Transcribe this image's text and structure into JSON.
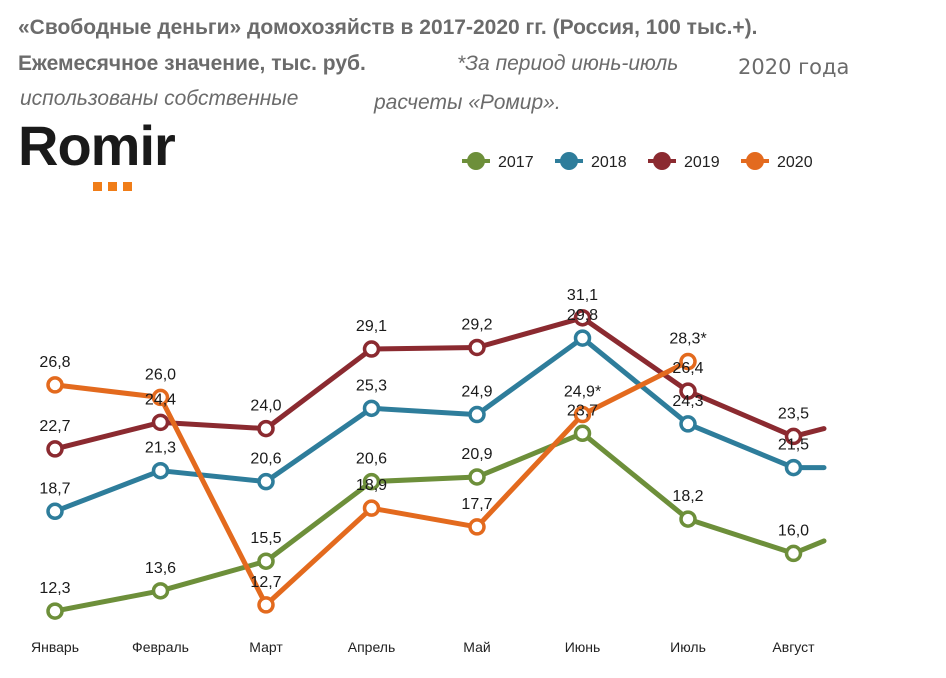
{
  "header": {
    "title_line1": "«Свободные деньги» домохозяйств в 2017-2020 гг. (Россия, 100 тыс.+).",
    "title_line2": "Ежемесячное значение, тыс. руб.",
    "note_part1": "*За период июнь-июль",
    "note_part2": "2020 года",
    "note_part3": "использованы собственные",
    "note_part4": "расчеты «Ромир»."
  },
  "logo": {
    "text": "Romir",
    "accent_color": "#f07d18"
  },
  "chart_data": {
    "type": "line",
    "categories": [
      "Январь",
      "Февраль",
      "Март",
      "Апрель",
      "Май",
      "Июнь",
      "Июль",
      "Август"
    ],
    "series": [
      {
        "name": "2017",
        "color": "#6d8f3a",
        "values": [
          12.3,
          13.6,
          15.5,
          20.6,
          20.9,
          23.7,
          18.2,
          16.0
        ],
        "labels": [
          "12,3",
          "13,6",
          "15,5",
          "20,6",
          "20,9",
          "23,7",
          "18,2",
          "16,0"
        ],
        "trailing_value": 16.8
      },
      {
        "name": "2018",
        "color": "#2e7d9b",
        "values": [
          18.7,
          21.3,
          20.6,
          25.3,
          24.9,
          29.8,
          24.3,
          21.5
        ],
        "labels": [
          "18,7",
          "21,3",
          "20,6",
          "25,3",
          "24,9",
          "29,8",
          "24,3",
          "21,5"
        ],
        "trailing_value": 21.5
      },
      {
        "name": "2019",
        "color": "#8b2a30",
        "values": [
          22.7,
          24.4,
          24.0,
          29.1,
          29.2,
          31.1,
          26.4,
          23.5
        ],
        "labels": [
          "22,7",
          "24,4",
          "24,0",
          "29,1",
          "29,2",
          "31,1",
          "26,4",
          "23,5"
        ],
        "trailing_value": 24.0
      },
      {
        "name": "2020",
        "color": "#e36a1e",
        "values": [
          26.8,
          26.0,
          12.7,
          18.9,
          17.7,
          24.9,
          28.3,
          null
        ],
        "labels": [
          "26,8",
          "26,0",
          "12,7",
          "18,9",
          "17,7",
          "24,9*",
          "28,3*",
          null
        ]
      }
    ],
    "ylim": [
      10,
      33
    ],
    "grid": false,
    "legend_placement": "top-right"
  }
}
